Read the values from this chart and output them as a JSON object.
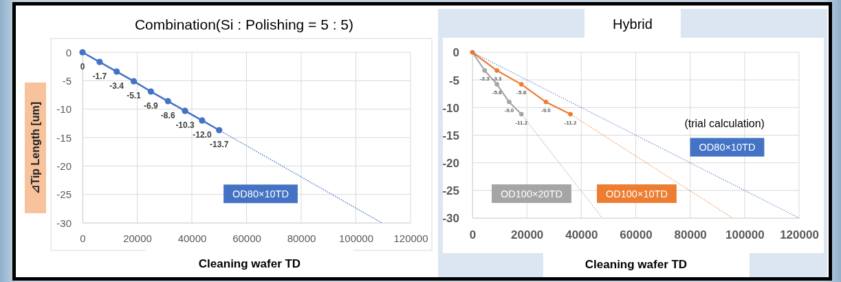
{
  "chart_data": [
    {
      "type": "line",
      "title": "Combination(Si : Polishing = 5 : 5)",
      "xlabel": "Cleaning wafer TD",
      "ylabel": "⊿Tip Length [um]",
      "xlim": [
        0,
        120000
      ],
      "xticks": [
        0,
        20000,
        40000,
        60000,
        80000,
        100000,
        120000
      ],
      "ylim": [
        -30,
        0
      ],
      "yticks": [
        0,
        -5,
        -10,
        -15,
        -20,
        -25,
        -30
      ],
      "grid": true,
      "marker": "circle",
      "line_style": "solid",
      "series": [
        {
          "name": "OD80×10TD",
          "color": "#4472c4",
          "x": [
            0,
            6250,
            12500,
            18750,
            25000,
            31250,
            37500,
            43750,
            50000
          ],
          "values": [
            0,
            -1.7,
            -3.4,
            -5.1,
            -6.9,
            -8.6,
            -10.3,
            -12.0,
            -13.7
          ],
          "value_labels": [
            "0",
            "-1.7",
            "-3.4",
            "-5.1",
            "-6.9",
            "-8.6",
            "-10.3",
            "-12.0",
            "-13.7"
          ]
        },
        {
          "color": "#4472c4",
          "x": [
            50000,
            109500
          ],
          "values": [
            -13.7,
            -30
          ],
          "marker": "none",
          "line_style": "dotted"
        }
      ]
    },
    {
      "type": "line",
      "title": "Hybrid",
      "xlabel": "Cleaning wafer TD",
      "annotations": [
        "(trial calculation)"
      ],
      "xlim": [
        0,
        120000
      ],
      "xticks": [
        0,
        20000,
        40000,
        60000,
        80000,
        100000,
        120000
      ],
      "ylim": [
        -30,
        0
      ],
      "yticks": [
        0,
        -5,
        -10,
        -15,
        -20,
        -25,
        -30
      ],
      "grid": true,
      "marker": "circle",
      "line_style": "solid",
      "series": [
        {
          "name": "OD100×20TD",
          "color": "#a5a5a5",
          "x": [
            0,
            4500,
            9000,
            13500,
            18000
          ],
          "values": [
            0,
            -3.3,
            -5.8,
            -9.0,
            -11.2
          ],
          "value_labels": [
            null,
            "-3.3",
            "-5.8",
            "-9.0",
            "-11.2"
          ]
        },
        {
          "color": "#a5a5a5",
          "x": [
            18000,
            47700
          ],
          "values": [
            -11.2,
            -30
          ],
          "marker": "none",
          "line_style": "dotted"
        },
        {
          "name": "OD100×10TD",
          "color": "#ed7d31",
          "x": [
            0,
            9000,
            18000,
            27000,
            36000
          ],
          "values": [
            0,
            -3.3,
            -5.8,
            -9.0,
            -11.2
          ],
          "value_labels": [
            null,
            "-3.3",
            "-5.8",
            "-9.0",
            "-11.2"
          ]
        },
        {
          "color": "#ed7d31",
          "x": [
            36000,
            95600
          ],
          "values": [
            -11.2,
            -30
          ],
          "marker": "none",
          "line_style": "dotted"
        },
        {
          "name": "OD80×10TD",
          "color": "#4472c4",
          "x": [
            0,
            120000
          ],
          "values": [
            0,
            -30
          ],
          "marker": "none",
          "line_style": "dotted"
        }
      ]
    }
  ]
}
